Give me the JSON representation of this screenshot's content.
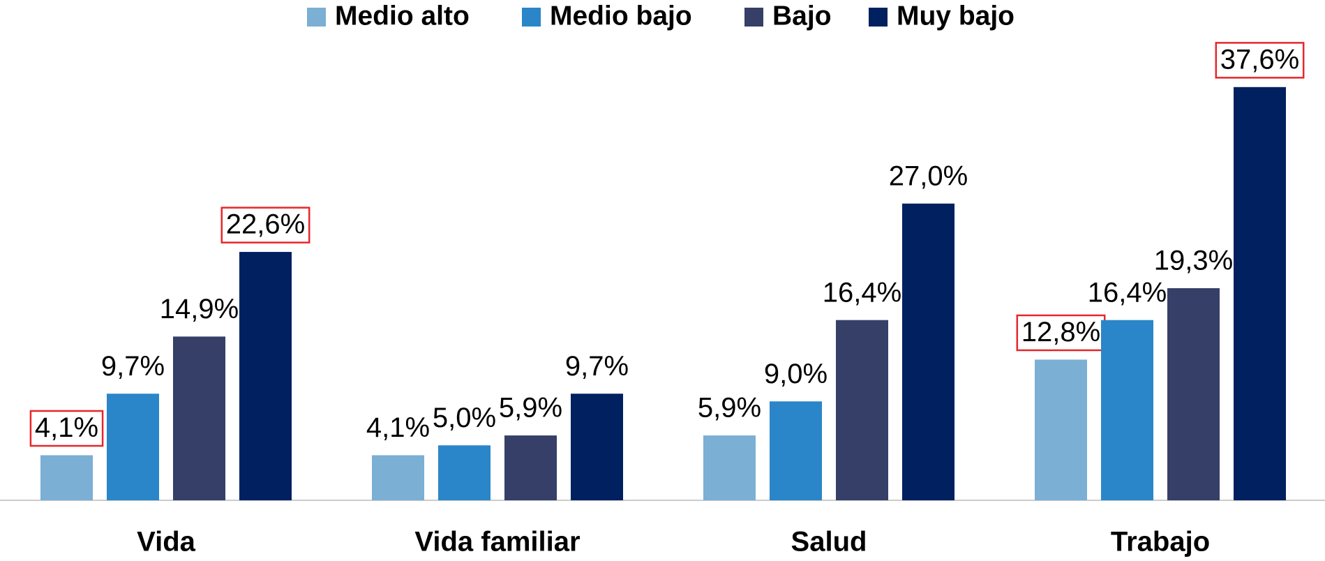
{
  "chart_data": {
    "type": "bar",
    "categories": [
      "Vida",
      "Vida familiar",
      "Salud",
      "Trabajo"
    ],
    "series": [
      {
        "name": "Medio alto",
        "color": "#7bafd4",
        "values": [
          4.1,
          4.1,
          5.9,
          12.8
        ],
        "value_labels": [
          "4,1%",
          "4,1%",
          "5,9%",
          "12,8%"
        ],
        "highlight": [
          true,
          false,
          false,
          true
        ]
      },
      {
        "name": "Medio bajo",
        "color": "#2a86c8",
        "values": [
          9.7,
          5.0,
          9.0,
          16.4
        ],
        "value_labels": [
          "9,7%",
          "5,0%",
          "9,0%",
          "16,4%"
        ],
        "highlight": [
          false,
          false,
          false,
          false
        ]
      },
      {
        "name": "Bajo",
        "color": "#353f67",
        "values": [
          14.9,
          5.9,
          16.4,
          19.3
        ],
        "value_labels": [
          "14,9%",
          "5,9%",
          "16,4%",
          "19,3%"
        ],
        "highlight": [
          false,
          false,
          false,
          false
        ]
      },
      {
        "name": "Muy bajo",
        "color": "#002060",
        "values": [
          22.6,
          9.7,
          27.0,
          37.6
        ],
        "value_labels": [
          "22,6%",
          "9,7%",
          "27,0%",
          "37,6%"
        ],
        "highlight": [
          true,
          false,
          false,
          true
        ]
      }
    ],
    "ylim": [
      0,
      40
    ],
    "legend": "top",
    "highlight_color": "#e8262a"
  }
}
